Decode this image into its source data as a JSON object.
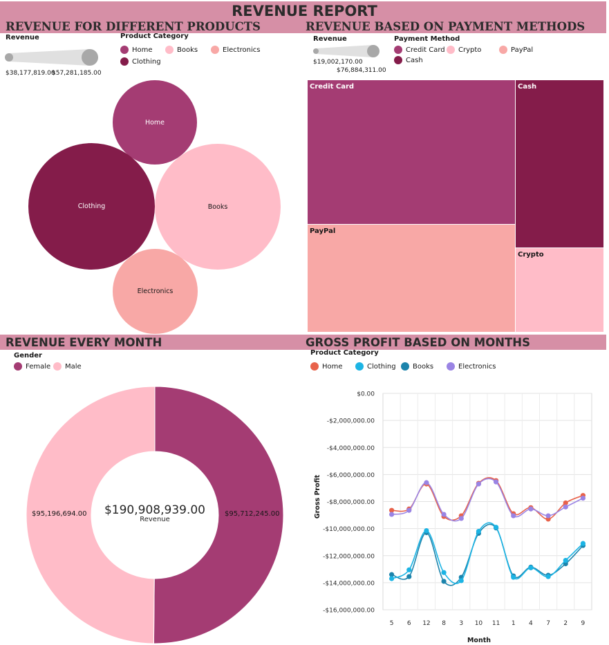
{
  "report_title": "REVENUE REPORT",
  "sections": {
    "products": "REVENUE FOR DIFFERENT PRODUCTS",
    "payments": "REVENUE BASED ON PAYMENT METHODS",
    "monthly": "REVENUE EVERY MONTH",
    "gross_profit": "GROSS PROFIT BASED ON MONTHS"
  },
  "colors": {
    "band": "#d68fa6",
    "home": "#a43c73",
    "books": "#ffbcc8",
    "electronics": "#f8a8a6",
    "clothing": "#841c4a",
    "female": "#a43c73",
    "male": "#ffbcc8",
    "line_home": "#e8624a",
    "line_clothing": "#1cb4e4",
    "line_books": "#1c84ac",
    "line_electronics": "#9a84e4"
  },
  "products_panel": {
    "size_legend_title": "Revenue",
    "size_min": "$38,177,819.00",
    "size_max": "$57,281,185.00",
    "color_legend_title": "Product Category",
    "legend": [
      "Home",
      "Books",
      "Electronics",
      "Clothing"
    ]
  },
  "payments_panel": {
    "size_legend_title": "Revenue",
    "size_min": "$19,002,170.00",
    "size_max": "$76,884,311.00",
    "color_legend_title": "Payment Method",
    "legend": [
      "Credit Card",
      "Crypto",
      "PayPal",
      "Cash"
    ]
  },
  "monthly_panel": {
    "legend_title": "Gender",
    "legend": [
      "Female",
      "Male"
    ],
    "center_value": "$190,908,939.00",
    "center_label": "Revenue"
  },
  "gross_profit_panel": {
    "legend_title": "Product Category",
    "legend": [
      "Home",
      "Clothing",
      "Books",
      "Electronics"
    ]
  },
  "chart_data": [
    {
      "type": "bubble",
      "title": "REVENUE FOR DIFFERENT PRODUCTS",
      "size_metric": "Revenue",
      "categories": [
        "Home",
        "Clothing",
        "Books",
        "Electronics"
      ],
      "size_range": [
        38177819,
        57281185
      ],
      "values": [
        38177819,
        57281185,
        57281185,
        38177819
      ]
    },
    {
      "type": "treemap",
      "title": "REVENUE BASED ON PAYMENT METHODS",
      "size_metric": "Revenue",
      "categories": [
        "Credit Card",
        "PayPal",
        "Cash",
        "Crypto"
      ],
      "size_range": [
        19002170,
        76884311
      ],
      "values": [
        76884311,
        50000000,
        44900000,
        19002170
      ]
    },
    {
      "type": "pie",
      "title": "REVENUE EVERY MONTH",
      "legend_title": "Gender",
      "categories": [
        "Female",
        "Male"
      ],
      "values": [
        95712245,
        95196694
      ],
      "value_labels": [
        "$95,712,245.00",
        "$95,196,694.00"
      ],
      "total": 190908939
    },
    {
      "type": "line",
      "title": "GROSS PROFIT BASED ON MONTHS",
      "xlabel": "Month",
      "ylabel": "Gross Profit",
      "categories": [
        "5",
        "6",
        "12",
        "8",
        "3",
        "10",
        "11",
        "1",
        "4",
        "7",
        "2",
        "9"
      ],
      "ylim": [
        -16000000,
        0
      ],
      "yticks": [
        "$0.00",
        "-$2,000,000.00",
        "-$4,000,000.00",
        "-$6,000,000.00",
        "-$8,000,000.00",
        "-$10,000,000.00",
        "-$12,000,000.00",
        "-$14,000,000.00",
        "-$16,000,000.00"
      ],
      "grid": true,
      "legend_position": "top-left",
      "series": [
        {
          "name": "Home",
          "values": [
            -8650000,
            -8550000,
            -6700000,
            -9100000,
            -9050000,
            -6650000,
            -6450000,
            -8900000,
            -8450000,
            -9300000,
            -8100000,
            -7550000
          ]
        },
        {
          "name": "Clothing",
          "values": [
            -13700000,
            -13050000,
            -10150000,
            -13250000,
            -13850000,
            -10200000,
            -9900000,
            -13600000,
            -12900000,
            -13550000,
            -12350000,
            -11100000
          ]
        },
        {
          "name": "Books",
          "values": [
            -13400000,
            -13550000,
            -10300000,
            -13900000,
            -13600000,
            -10350000,
            -9950000,
            -13500000,
            -12850000,
            -13450000,
            -12600000,
            -11250000
          ]
        },
        {
          "name": "Electronics",
          "values": [
            -8950000,
            -8650000,
            -6600000,
            -8950000,
            -9250000,
            -6700000,
            -6550000,
            -9050000,
            -8550000,
            -9050000,
            -8400000,
            -7750000
          ]
        }
      ]
    }
  ]
}
